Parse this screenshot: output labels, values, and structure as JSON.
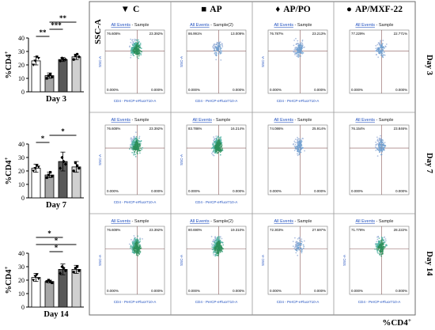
{
  "bar_panels": [
    {
      "day_label": "Day 3",
      "y_label": "%CD4",
      "y_label_sup": "+",
      "ylim": [
        0,
        40
      ],
      "ticks": [
        0,
        10,
        20,
        30,
        40
      ],
      "values": [
        23,
        12,
        24,
        26
      ],
      "errors": [
        3,
        2,
        1.5,
        2
      ],
      "points": [
        [
          20,
          23,
          26,
          25
        ],
        [
          10,
          12,
          13,
          11
        ],
        [
          23,
          25,
          24,
          24
        ],
        [
          24,
          27,
          28,
          26
        ]
      ],
      "significance": [
        {
          "from": 0,
          "to": 1,
          "label": "**",
          "level": 0
        },
        {
          "from": 1,
          "to": 2,
          "label": "***",
          "level": 1
        },
        {
          "from": 1,
          "to": 3,
          "label": "**",
          "level": 2
        }
      ]
    },
    {
      "day_label": "Day 7",
      "y_label": "%CD4",
      "y_label_sup": "+",
      "ylim": [
        0,
        40
      ],
      "ticks": [
        0,
        10,
        20,
        30,
        40
      ],
      "values": [
        22,
        17,
        27,
        23
      ],
      "errors": [
        3,
        2,
        7,
        4
      ],
      "points": [
        [
          20,
          22,
          24,
          23
        ],
        [
          15,
          17,
          19,
          16
        ],
        [
          22,
          30,
          27,
          25
        ],
        [
          20,
          26,
          24,
          22
        ]
      ],
      "significance": [
        {
          "from": 0,
          "to": 1,
          "label": "*",
          "level": 0
        },
        {
          "from": 1,
          "to": 3,
          "label": "*",
          "level": 1
        }
      ]
    },
    {
      "day_label": "Day 14",
      "y_label": "%CD4",
      "y_label_sup": "+",
      "ylim": [
        0,
        40
      ],
      "ticks": [
        0,
        10,
        20,
        30,
        40
      ],
      "values": [
        22,
        19,
        28,
        28
      ],
      "errors": [
        3,
        1,
        4,
        3
      ],
      "points": [
        [
          20,
          23,
          24,
          21
        ],
        [
          19,
          20,
          19,
          18
        ],
        [
          25,
          30,
          29,
          27
        ],
        [
          26,
          29,
          30,
          27
        ]
      ],
      "significance": [
        {
          "from": 1,
          "to": 2,
          "label": "*",
          "level": 0
        },
        {
          "from": 0,
          "to": 3,
          "label": "*",
          "level": 1
        },
        {
          "from": 0,
          "to": 2,
          "label": "*",
          "level": 2
        }
      ]
    }
  ],
  "bar_colors": [
    "#ffffff",
    "#a6a6a6",
    "#595959",
    "#d0d0d0"
  ],
  "point_markers": [
    "triangle-down",
    "square",
    "diamond",
    "circle"
  ],
  "flow_grid": {
    "groups": [
      {
        "symbol": "▼",
        "name": "C"
      },
      {
        "symbol": "■",
        "name": "AP"
      },
      {
        "symbol": "♦",
        "name": "AP/PO"
      },
      {
        "symbol": "●",
        "name": "AP/MXF-22"
      }
    ],
    "y_axis_title": "SSC-A",
    "x_axis_title": "%CD4",
    "x_axis_title_sup": "+",
    "rows": [
      {
        "day": "Day 3",
        "plots": [
          {
            "events": "All Events",
            "sample": "Sample",
            "tl": "76.608%",
            "tr": "23.392%",
            "bl": "0.000%",
            "br": "0.000%",
            "xlabel": "CD4 - PerCP-eFluor710-A",
            "ylabel": "SSC-A",
            "density": 0.9
          },
          {
            "events": "All Events",
            "sample": "Sample(2)",
            "tl": "86.991%",
            "tr": "13.009%",
            "bl": "0.000%",
            "br": "0.000%",
            "xlabel": "CD4 - PerCP-eFluor710-A",
            "ylabel": "SSC-A",
            "density": 0.2
          },
          {
            "events": "All Events",
            "sample": "Sample",
            "tl": "76.787%",
            "tr": "23.213%",
            "bl": "0.000%",
            "br": "0.000%",
            "xlabel": "CD4 - PerCP-eFluor710-A",
            "ylabel": "SSC-A",
            "density": 0.35
          },
          {
            "events": "All Events",
            "sample": "Sample",
            "tl": "77.229%",
            "tr": "22.771%",
            "bl": "0.000%",
            "br": "0.000%",
            "xlabel": "",
            "ylabel": "",
            "density": 0.25
          }
        ]
      },
      {
        "day": "Day 7",
        "plots": [
          {
            "events": "All Events",
            "sample": "Sample",
            "tl": "76.608%",
            "tr": "23.392%",
            "bl": "0.000%",
            "br": "0.000%",
            "xlabel": "CD4 - PerCP-eFluor710-A",
            "ylabel": "SSC-A",
            "density": 0.9
          },
          {
            "events": "All Events",
            "sample": "Sample",
            "tl": "83.786%",
            "tr": "16.214%",
            "bl": "0.000%",
            "br": "0.000%",
            "xlabel": "CD4 - PerCP-eFluor710-A",
            "ylabel": "SSC-A",
            "density": 1.0
          },
          {
            "events": "All Events",
            "sample": "Sample",
            "tl": "74.086%",
            "tr": "25.914%",
            "bl": "0.000%",
            "br": "0.000%",
            "xlabel": "",
            "ylabel": "",
            "density": 0.3
          },
          {
            "events": "All Events",
            "sample": "Sample",
            "tl": "76.154%",
            "tr": "23.846%",
            "bl": "0.000%",
            "br": "0.000%",
            "xlabel": "",
            "ylabel": "",
            "density": 0.3
          }
        ]
      },
      {
        "day": "Day 14",
        "plots": [
          {
            "events": "All Events",
            "sample": "Sample",
            "tl": "76.608%",
            "tr": "23.392%",
            "bl": "0.000%",
            "br": "0.000%",
            "xlabel": "CD4 - PerCP-eFluor710-A",
            "ylabel": "SSC-A",
            "density": 0.9
          },
          {
            "events": "All Events",
            "sample": "Sample(2)",
            "tl": "80.690%",
            "tr": "19.310%",
            "bl": "0.000%",
            "br": "0.000%",
            "xlabel": "CD4 - PerCP-eFluor710-A",
            "ylabel": "SSC-A",
            "density": 1.0
          },
          {
            "events": "All Events",
            "sample": "Sample",
            "tl": "72.303%",
            "tr": "27.697%",
            "bl": "0.000%",
            "br": "0.000%",
            "xlabel": "CD4 - PerCP-eFluor710-A",
            "ylabel": "SSC-A",
            "density": 0.15
          },
          {
            "events": "All Events",
            "sample": "Sample",
            "tl": "71.778%",
            "tr": "28.222%",
            "bl": "0.000%",
            "br": "0.000%",
            "xlabel": "CD4 - PerCP-eFluor710-A",
            "ylabel": "SSC-A",
            "density": 0.6
          }
        ]
      }
    ]
  },
  "chart_data": [
    {
      "type": "bar",
      "title": "Day 3",
      "ylabel": "%CD4+",
      "categories": [
        "C",
        "AP",
        "AP/PO",
        "AP/MXF-22"
      ],
      "values": [
        23,
        12,
        24,
        26
      ],
      "ylim": [
        0,
        40
      ]
    },
    {
      "type": "bar",
      "title": "Day 7",
      "ylabel": "%CD4+",
      "categories": [
        "C",
        "AP",
        "AP/PO",
        "AP/MXF-22"
      ],
      "values": [
        22,
        17,
        27,
        23
      ],
      "ylim": [
        0,
        40
      ]
    },
    {
      "type": "bar",
      "title": "Day 14",
      "ylabel": "%CD4+",
      "categories": [
        "C",
        "AP",
        "AP/PO",
        "AP/MXF-22"
      ],
      "values": [
        22,
        19,
        28,
        28
      ],
      "ylim": [
        0,
        40
      ]
    }
  ]
}
